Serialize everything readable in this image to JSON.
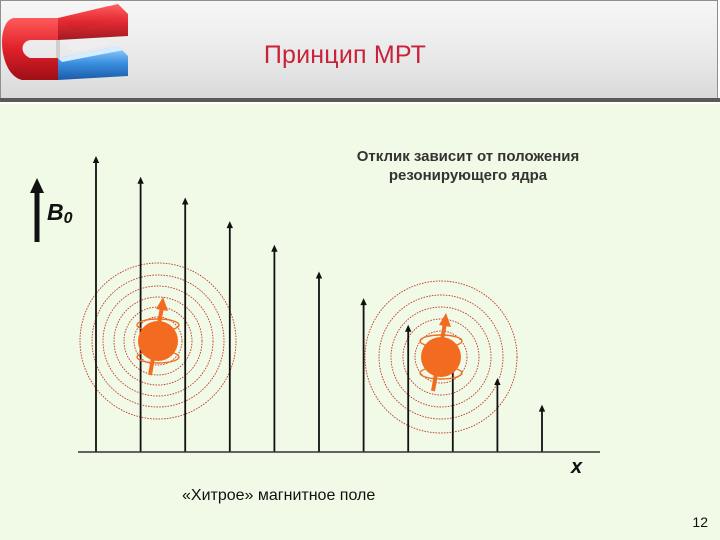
{
  "slide": {
    "title": "Принцип МРТ",
    "caption_lines": [
      "Отклик зависит от положения",
      "резонирующего ядра"
    ],
    "field_symbol": "B",
    "field_subscript": "0",
    "axis_label": "x",
    "field_caption": "«Хитрое» магнитное поле",
    "page_number": "12"
  },
  "colors": {
    "title": "#c8233a",
    "background": "#f1fae6",
    "nucleus": "#f26b21",
    "rings": "#c23a2a",
    "arrows": "#111111"
  },
  "icons": {
    "logo": "horseshoe-magnet-icon"
  },
  "field_strength": [
    1.0,
    0.93,
    0.86,
    0.78,
    0.7,
    0.61,
    0.52,
    0.43,
    0.34,
    0.25,
    0.16
  ],
  "nuclei": [
    {
      "x_fraction": 0.17,
      "spin": "up-tilted-right"
    },
    {
      "x_fraction": 0.79,
      "spin": "up-tilted-right"
    }
  ]
}
